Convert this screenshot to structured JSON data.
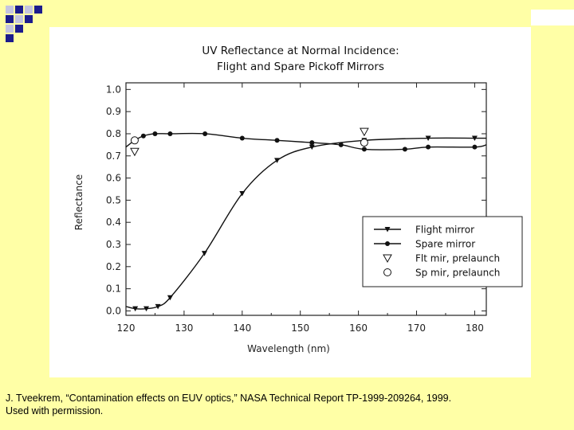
{
  "slide": {
    "caption_line1": "J. Tveekrem, “Contamination effects on EUV optics,” NASA Technical Report TP-1999-209264, 1999.",
    "caption_line2": "Used with permission.",
    "accent_colors": [
      "#1c1c8c",
      "#c4c4e0"
    ]
  },
  "chart_data": {
    "type": "line",
    "title_line1": "UV Reflectance at Normal Incidence:",
    "title_line2": "Flight and Spare Pickoff Mirrors",
    "xlabel": "Wavelength (nm)",
    "ylabel": "Reflectance",
    "xlim": [
      120,
      182
    ],
    "ylim": [
      -0.02,
      1.03
    ],
    "x_ticks": [
      120,
      130,
      140,
      150,
      160,
      170,
      180
    ],
    "y_ticks": [
      0.0,
      0.1,
      0.2,
      0.3,
      0.4,
      0.5,
      0.6,
      0.7,
      0.8,
      0.9,
      1.0
    ],
    "grid": false,
    "legend_position": "lower-right",
    "series": [
      {
        "name": "Flight mirror",
        "style": "line-triangle",
        "x": [
          120,
          121.6,
          123.5,
          125.5,
          127.6,
          133.5,
          140,
          146,
          152,
          161,
          172,
          180,
          182
        ],
        "y": [
          0.02,
          0.01,
          0.01,
          0.02,
          0.06,
          0.26,
          0.53,
          0.68,
          0.74,
          0.77,
          0.78,
          0.78,
          0.78
        ]
      },
      {
        "name": "Spare mirror",
        "style": "line-circle",
        "x": [
          120,
          121.5,
          123,
          125,
          127.6,
          133.6,
          140,
          146,
          152,
          157,
          161,
          168,
          172,
          180,
          182
        ],
        "y": [
          0.74,
          0.77,
          0.79,
          0.8,
          0.8,
          0.8,
          0.78,
          0.77,
          0.76,
          0.75,
          0.73,
          0.73,
          0.74,
          0.74,
          0.75
        ]
      },
      {
        "name": "Flt mir, prelaunch",
        "style": "open-triangle",
        "x": [
          121.5,
          161
        ],
        "y": [
          0.72,
          0.81
        ]
      },
      {
        "name": "Sp mir, prelaunch",
        "style": "open-circle",
        "x": [
          121.5,
          161
        ],
        "y": [
          0.77,
          0.76
        ]
      }
    ]
  }
}
